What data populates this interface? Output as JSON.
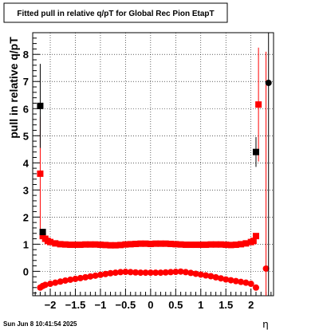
{
  "chart_data": {
    "type": "scatter",
    "title": "Fitted pull in relative q/pT for Global Rec Pion EtapT",
    "xlabel": "η",
    "ylabel": "pull in relative q/pT",
    "xlim": [
      -2.35,
      2.45
    ],
    "ylim": [
      -0.9,
      8.8
    ],
    "x_ticks": [
      -2,
      -1.5,
      -1,
      -0.5,
      0,
      0.5,
      1,
      1.5,
      2
    ],
    "x_tick_labels": [
      "−2",
      "−1.5",
      "−1",
      "−0.5",
      "0",
      "0.5",
      "1",
      "1.5",
      "2"
    ],
    "y_ticks": [
      0,
      1,
      2,
      3,
      4,
      5,
      6,
      7,
      8
    ],
    "y_tick_labels": [
      "0",
      "1",
      "2",
      "3",
      "4",
      "5",
      "6",
      "7",
      "8"
    ],
    "grid": true,
    "footer": "Sun Jun  8 10:41:54 2025",
    "series": [
      {
        "color": "#ff0000",
        "marker": "square",
        "x": [
          -2.2,
          -2.15,
          -2.1,
          -2.05,
          -2.0,
          -1.9,
          -1.8,
          -1.7,
          -1.6,
          -1.5,
          -1.4,
          -1.3,
          -1.2,
          -1.1,
          -1.0,
          -0.9,
          -0.8,
          -0.7,
          -0.6,
          -0.5,
          -0.4,
          -0.3,
          -0.2,
          -0.1,
          0.0,
          0.1,
          0.2,
          0.3,
          0.4,
          0.5,
          0.6,
          0.7,
          0.8,
          0.9,
          1.0,
          1.1,
          1.2,
          1.3,
          1.4,
          1.5,
          1.6,
          1.7,
          1.8,
          1.9,
          2.0,
          2.05,
          2.1,
          2.15
        ],
        "y": [
          3.6,
          1.3,
          1.2,
          1.12,
          1.08,
          1.03,
          1.0,
          0.99,
          0.98,
          0.98,
          0.98,
          0.99,
          0.99,
          0.99,
          0.98,
          0.97,
          0.96,
          0.96,
          0.97,
          0.99,
          1.0,
          1.01,
          1.02,
          1.02,
          1.01,
          1.02,
          1.02,
          1.02,
          1.01,
          1.0,
          0.99,
          0.98,
          0.98,
          0.98,
          0.98,
          0.98,
          0.99,
          0.99,
          0.99,
          0.98,
          0.97,
          0.98,
          1.0,
          1.03,
          1.08,
          1.12,
          1.3,
          6.15
        ],
        "yerr": [
          2.1,
          0.08,
          0.05,
          0.04,
          0.03,
          0.02,
          0.02,
          0.02,
          0.02,
          0.02,
          0.02,
          0.02,
          0.02,
          0.02,
          0.02,
          0.02,
          0.02,
          0.02,
          0.02,
          0.02,
          0.02,
          0.02,
          0.02,
          0.02,
          0.02,
          0.02,
          0.02,
          0.02,
          0.02,
          0.02,
          0.02,
          0.02,
          0.02,
          0.02,
          0.02,
          0.02,
          0.02,
          0.02,
          0.02,
          0.02,
          0.02,
          0.02,
          0.02,
          0.03,
          0.04,
          0.05,
          0.08,
          2.1
        ]
      },
      {
        "color": "#ff0000",
        "marker": "circle",
        "x": [
          -2.2,
          -2.15,
          -2.1,
          -2.0,
          -1.9,
          -1.8,
          -1.7,
          -1.6,
          -1.5,
          -1.4,
          -1.3,
          -1.2,
          -1.1,
          -1.0,
          -0.9,
          -0.8,
          -0.7,
          -0.6,
          -0.5,
          -0.4,
          -0.3,
          -0.2,
          -0.1,
          0.0,
          0.1,
          0.2,
          0.3,
          0.4,
          0.5,
          0.6,
          0.7,
          0.8,
          0.9,
          1.0,
          1.1,
          1.2,
          1.3,
          1.4,
          1.5,
          1.6,
          1.7,
          1.8,
          1.9,
          2.0,
          2.1,
          2.3
        ],
        "y": [
          -0.6,
          -0.54,
          -0.5,
          -0.46,
          -0.42,
          -0.38,
          -0.34,
          -0.31,
          -0.28,
          -0.25,
          -0.22,
          -0.19,
          -0.16,
          -0.13,
          -0.1,
          -0.07,
          -0.05,
          -0.03,
          -0.02,
          -0.03,
          -0.04,
          -0.05,
          -0.05,
          -0.05,
          -0.05,
          -0.05,
          -0.04,
          -0.03,
          -0.02,
          -0.01,
          -0.03,
          -0.06,
          -0.09,
          -0.12,
          -0.15,
          -0.18,
          -0.22,
          -0.26,
          -0.3,
          -0.33,
          -0.36,
          -0.39,
          -0.42,
          -0.46,
          -0.6,
          0.1
        ],
        "yerr": [
          0.05,
          0.04,
          0.03,
          0.02,
          0.02,
          0.02,
          0.02,
          0.02,
          0.02,
          0.02,
          0.02,
          0.02,
          0.02,
          0.02,
          0.02,
          0.02,
          0.02,
          0.02,
          0.02,
          0.02,
          0.02,
          0.02,
          0.02,
          0.02,
          0.02,
          0.02,
          0.02,
          0.02,
          0.02,
          0.02,
          0.02,
          0.02,
          0.02,
          0.02,
          0.02,
          0.02,
          0.02,
          0.02,
          0.02,
          0.02,
          0.02,
          0.02,
          0.02,
          0.02,
          0.05,
          8.0
        ]
      },
      {
        "color": "#000000",
        "marker": "square",
        "x": [
          -2.2,
          -2.15,
          2.1
        ],
        "y": [
          6.1,
          1.45,
          4.4
        ],
        "yerr": [
          1.55,
          0.05,
          0.55
        ]
      },
      {
        "color": "#000000",
        "marker": "circle",
        "x": [
          2.35
        ],
        "y": [
          6.95
        ],
        "yerr": [
          8.0
        ]
      }
    ]
  }
}
